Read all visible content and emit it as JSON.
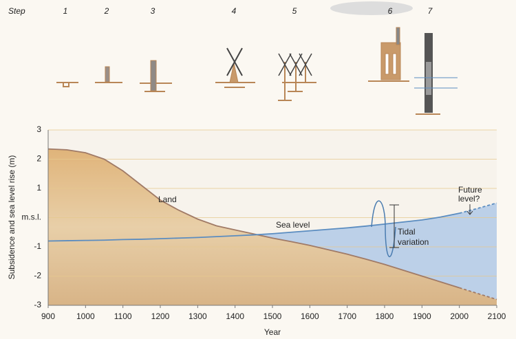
{
  "illustration": {
    "step_label": "Step",
    "steps": [
      "1",
      "2",
      "3",
      "4",
      "5",
      "6",
      "7"
    ]
  },
  "chart_data": {
    "type": "area-line",
    "x_label": "Year",
    "y_label": "Subsidence and sea level rise (m)",
    "x": [
      900,
      950,
      1000,
      1050,
      1100,
      1150,
      1200,
      1250,
      1300,
      1350,
      1400,
      1450,
      1500,
      1550,
      1600,
      1650,
      1700,
      1750,
      1800,
      1850,
      1900,
      1950,
      2000,
      2050,
      2100
    ],
    "series": [
      {
        "name": "Land",
        "color": "#a07a66",
        "fill": "#e3bc80",
        "values": [
          2.35,
          2.32,
          2.22,
          2.0,
          1.6,
          1.1,
          0.6,
          0.25,
          -0.05,
          -0.28,
          -0.42,
          -0.56,
          -0.7,
          -0.82,
          -0.95,
          -1.1,
          -1.25,
          -1.42,
          -1.6,
          -1.8,
          -2.0,
          -2.2,
          -2.4,
          -2.6,
          -2.8
        ]
      },
      {
        "name": "Sea level",
        "color": "#5a8cc0",
        "fill": "#bcd0e8",
        "values": [
          -0.8,
          -0.79,
          -0.78,
          -0.77,
          -0.75,
          -0.74,
          -0.72,
          -0.7,
          -0.68,
          -0.65,
          -0.62,
          -0.59,
          -0.55,
          -0.5,
          -0.45,
          -0.4,
          -0.35,
          -0.29,
          -0.22,
          -0.15,
          -0.08,
          0.02,
          0.15,
          0.32,
          0.5
        ]
      }
    ],
    "dashed_after": 2000,
    "xlim": [
      900,
      2100
    ],
    "xticks": [
      900,
      1000,
      1100,
      1200,
      1300,
      1400,
      1500,
      1600,
      1700,
      1800,
      1900,
      2000,
      2100
    ],
    "ylim": [
      -3,
      3
    ],
    "yticks": [
      -3,
      -2,
      -1,
      {
        "value": 0,
        "label": "m.s.l."
      },
      1,
      2,
      3
    ],
    "grid": true,
    "annotations": [
      "Tidal",
      "variation",
      "Future",
      "level?"
    ]
  }
}
